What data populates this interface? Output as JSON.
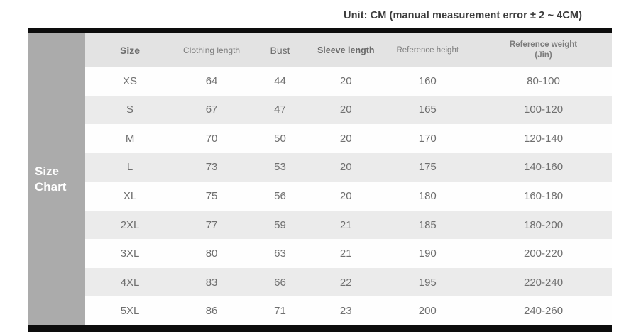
{
  "unit_note": "Unit: CM (manual measurement error ± 2 ~ 4CM)",
  "side_label": "Size\nChart",
  "chart_data": {
    "type": "table",
    "title": "Size Chart",
    "columns": [
      {
        "key": "size",
        "label": "Size"
      },
      {
        "key": "clothing-length",
        "label": "Clothing length"
      },
      {
        "key": "bust",
        "label": "Bust"
      },
      {
        "key": "sleeve-length",
        "label": "Sleeve length"
      },
      {
        "key": "reference-height",
        "label": "Reference height"
      },
      {
        "key": "reference-weight",
        "label": "Reference weight\n(Jin)"
      }
    ],
    "rows": [
      [
        "XS",
        "64",
        "44",
        "20",
        "160",
        "80-100"
      ],
      [
        "S",
        "67",
        "47",
        "20",
        "165",
        "100-120"
      ],
      [
        "M",
        "70",
        "50",
        "20",
        "170",
        "120-140"
      ],
      [
        "L",
        "73",
        "53",
        "20",
        "175",
        "140-160"
      ],
      [
        "XL",
        "75",
        "56",
        "20",
        "180",
        "160-180"
      ],
      [
        "2XL",
        "77",
        "59",
        "21",
        "185",
        "180-200"
      ],
      [
        "3XL",
        "80",
        "63",
        "21",
        "190",
        "200-220"
      ],
      [
        "4XL",
        "83",
        "66",
        "22",
        "195",
        "220-240"
      ],
      [
        "5XL",
        "86",
        "71",
        "23",
        "200",
        "240-260"
      ]
    ],
    "layout": {
      "stripe_colors": [
        "#fefefe",
        "#ebebeb"
      ],
      "header_bg": "#e3e3e3",
      "side_label_bg": "#ababab",
      "border_bar_color": "#0d0d0d"
    }
  }
}
